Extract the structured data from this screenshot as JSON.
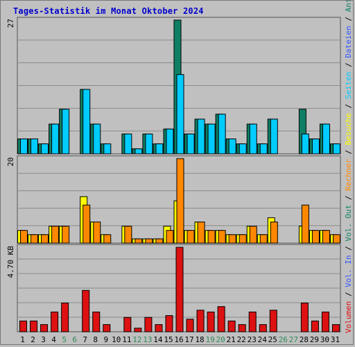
{
  "title": "Tages-Statistik im Monat Oktober 2024",
  "colors": {
    "background": "#c0c0c0",
    "panel": "#c0c0c0",
    "gridline": "#8a8a8a",
    "requests": "#0f7f64",
    "files": "#00ccff",
    "pages": "#00aacc",
    "visits": "#ffff00",
    "hosts": "#ff8800",
    "volume": "#dd1111",
    "weekend_label": "#2e8b57",
    "weekday_label": "#000000"
  },
  "chart_data": {
    "type": "bar",
    "days": [
      "1",
      "2",
      "3",
      "4",
      "5",
      "6",
      "7",
      "8",
      "9",
      "10",
      "11",
      "12",
      "13",
      "14",
      "15",
      "16",
      "17",
      "18",
      "19",
      "20",
      "21",
      "22",
      "23",
      "24",
      "25",
      "26",
      "27",
      "28",
      "29",
      "30",
      "31"
    ],
    "weekend_days": [
      "5",
      "6",
      "12",
      "13",
      "19",
      "20",
      "26",
      "27"
    ],
    "panels": [
      {
        "id": "hits",
        "ymax_label": "27",
        "ymax": 27,
        "series": [
          {
            "name": "Anfragen",
            "color": "#0f7f64",
            "values": [
              3,
              3,
              2,
              6,
              9,
              0,
              13,
              6,
              2,
              0,
              4,
              1,
              4,
              2,
              5,
              27,
              4,
              7,
              6,
              8,
              3,
              2,
              6,
              2,
              7,
              0,
              0,
              9,
              3,
              6,
              2
            ]
          },
          {
            "name": "Dateien",
            "color": "#00ccff",
            "values": [
              3,
              3,
              2,
              6,
              9,
              0,
              13,
              6,
              2,
              0,
              4,
              1,
              4,
              2,
              5,
              16,
              4,
              7,
              6,
              8,
              3,
              2,
              6,
              2,
              7,
              0,
              0,
              4,
              3,
              6,
              2
            ]
          }
        ]
      },
      {
        "id": "visits",
        "ymax_label": "20",
        "ymax": 20,
        "series": [
          {
            "name": "Besuche",
            "color": "#ffff00",
            "values": [
              3,
              2,
              2,
              4,
              4,
              0,
              11,
              5,
              2,
              0,
              4,
              1,
              1,
              1,
              4,
              10,
              3,
              5,
              3,
              3,
              2,
              2,
              4,
              2,
              6,
              0,
              0,
              4,
              3,
              3,
              2
            ]
          },
          {
            "name": "Rechner",
            "color": "#ff8800",
            "values": [
              3,
              2,
              2,
              4,
              4,
              0,
              9,
              5,
              2,
              0,
              4,
              1,
              1,
              1,
              3,
              20,
              3,
              5,
              3,
              3,
              2,
              2,
              4,
              2,
              5,
              0,
              0,
              9,
              3,
              3,
              2
            ]
          }
        ]
      },
      {
        "id": "volume",
        "ymax_label": "4.70 KB",
        "ymax": 4.7,
        "series": [
          {
            "name": "Volumen",
            "color": "#dd1111",
            "values": [
              0.6,
              0.6,
              0.4,
              1.1,
              1.6,
              0,
              2.3,
              1.1,
              0.4,
              0,
              0.8,
              0.2,
              0.8,
              0.4,
              0.9,
              4.7,
              0.7,
              1.2,
              1.1,
              1.4,
              0.6,
              0.4,
              1.1,
              0.4,
              1.2,
              0,
              0,
              1.6,
              0.6,
              1.1,
              0.4
            ]
          }
        ]
      }
    ],
    "legend": [
      {
        "label": "Volumen",
        "color": "#dd1111"
      },
      {
        "label": " / ",
        "color": "#000000"
      },
      {
        "label": "Vol. In",
        "color": "#3355ff"
      },
      {
        "label": " / ",
        "color": "#000000"
      },
      {
        "label": "Vol. Out",
        "color": "#0f7f64"
      },
      {
        "label": " / ",
        "color": "#000000"
      },
      {
        "label": "Rechner",
        "color": "#ff8800"
      },
      {
        "label": " / ",
        "color": "#000000"
      },
      {
        "label": "Besuche",
        "color": "#ffff00"
      },
      {
        "label": " / ",
        "color": "#000000"
      },
      {
        "label": "Seiten",
        "color": "#00ccff"
      },
      {
        "label": " / ",
        "color": "#000000"
      },
      {
        "label": "Dateien",
        "color": "#3355ff"
      },
      {
        "label": " / ",
        "color": "#000000"
      },
      {
        "label": "Anfragen",
        "color": "#0f7f64"
      }
    ]
  }
}
